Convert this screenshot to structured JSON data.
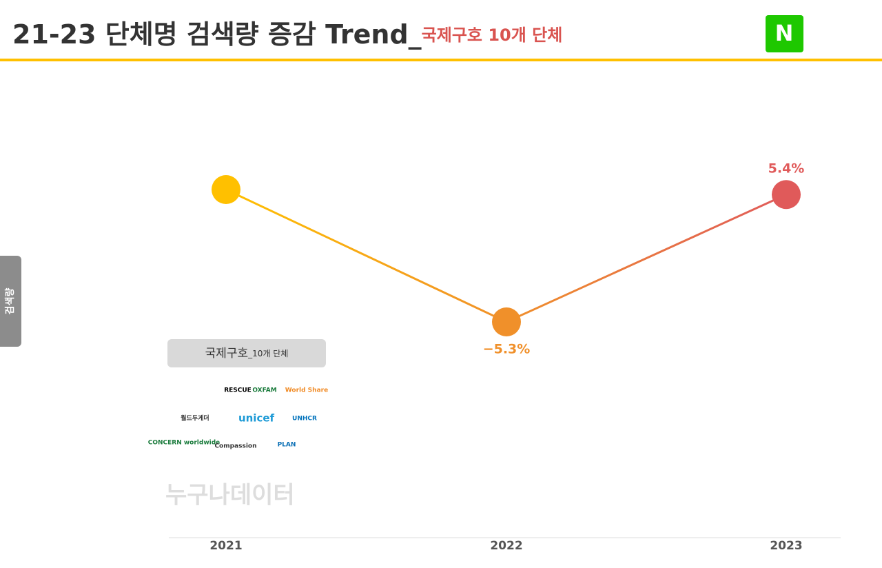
{
  "title": "21-23 단체명 검색량 증감 Trend_",
  "subtitle": "국제구호 10개 단체",
  "badge": "N",
  "side_label": "검색량",
  "legend": {
    "title": "국제구호",
    "suffix": "_10개 단체",
    "logos": [
      "RESCUE",
      "OXFAM",
      "World Share",
      "월드두게더",
      "unicef",
      "UNHCR",
      "CONCERN worldwide",
      "Compassion",
      "PLAN"
    ]
  },
  "watermark": "누구나데이터",
  "chart_data": {
    "type": "line",
    "categories": [
      "2021",
      "2022",
      "2023"
    ],
    "series": [
      {
        "name": "국제구호",
        "values": [
          100,
          94.7,
          99.8
        ],
        "point_colors": [
          "#ffc000",
          "#f0902a",
          "#e05a5a"
        ],
        "change_labels": [
          null,
          "−5.3%",
          "5.4%"
        ]
      }
    ]
  }
}
